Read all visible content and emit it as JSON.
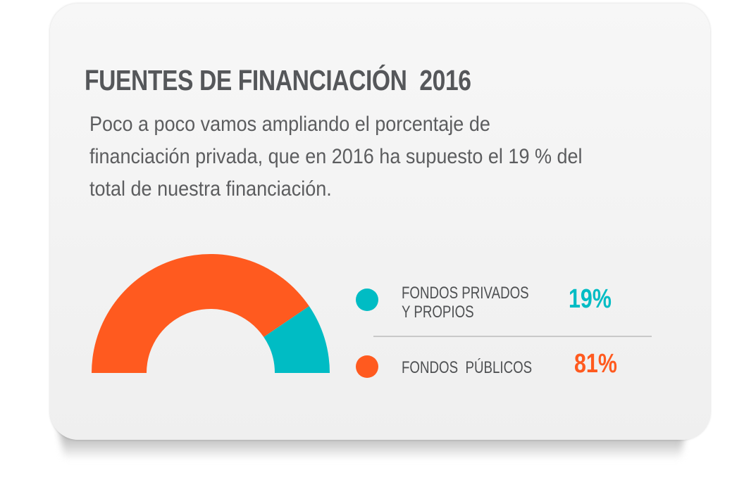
{
  "title": "FUENTES DE FINANCIACIÓN  2016",
  "description": "Poco a poco vamos ampliando el porcentaje de financiación privada, que en 2016 ha supuesto el 19 % del total de nuestra financiación.",
  "colors": {
    "private": "#00bcc4",
    "public": "#ff5a1f"
  },
  "chart_data": {
    "type": "pie",
    "variant": "semi-donut",
    "categories": [
      "FONDOS PRIVADOS Y PROPIOS",
      "FONDOS PÚBLICOS"
    ],
    "values": [
      19,
      81
    ],
    "unit": "%"
  },
  "legend": [
    {
      "label": "FONDOS PRIVADOS\nY PROPIOS",
      "value": "19%",
      "color": "#00bcc4"
    },
    {
      "label": "FONDOS  PÚBLICOS",
      "value": "81%",
      "color": "#ff5a1f"
    }
  ]
}
